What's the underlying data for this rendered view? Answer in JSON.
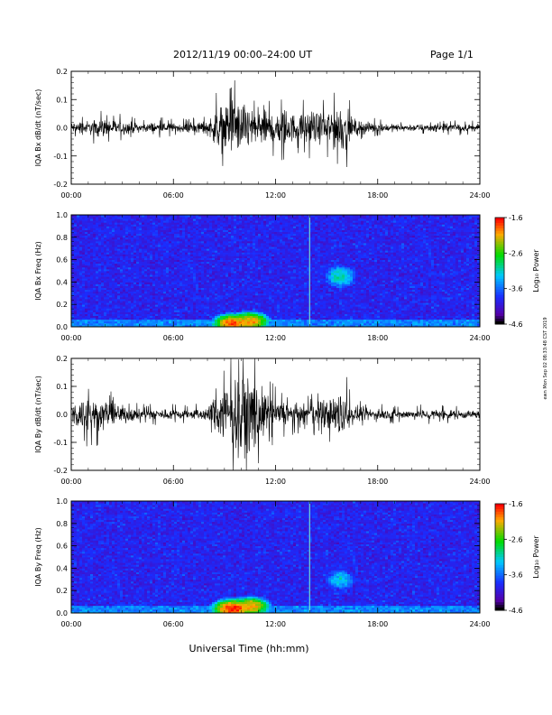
{
  "header": {
    "title": "2012/11/19  00:00–24:00 UT",
    "page": "Page 1/1"
  },
  "side_note": "ewn Mon Sep 02 08:33:48 CST 2019",
  "footer": {
    "xlabel": "Universal Time (hh:mm)"
  },
  "time_ticks": [
    "00:00",
    "06:00",
    "12:00",
    "18:00",
    "24:00"
  ],
  "colorbar": {
    "label": "Log₁₀ Power",
    "ticks": [
      "-1.6",
      "-2.6",
      "-3.6",
      "-4.6"
    ],
    "colors": [
      "#ff0000",
      "#ffaa00",
      "#00dd00",
      "#00ccff",
      "#1a2dff",
      "#5500aa",
      "#000000"
    ]
  },
  "chart_data": [
    {
      "type": "line",
      "ylabel": "IQA Bx dB/dt (nT/sec)",
      "ylim": [
        -0.2,
        0.2
      ],
      "yticks": [
        "0.2",
        "0.1",
        "0.0",
        "-0.1",
        "-0.2"
      ],
      "xlim_hours": [
        0,
        24
      ],
      "envelope": {
        "x_hours": [
          0,
          1,
          2,
          3,
          4,
          5,
          6,
          7,
          8,
          8.5,
          9,
          9.5,
          10,
          10.5,
          11,
          11.5,
          12,
          12.5,
          13,
          13.5,
          14,
          14.5,
          15,
          15.5,
          16,
          16.5,
          17,
          18,
          19,
          20,
          21,
          22,
          23,
          24
        ],
        "amplitude": [
          0.03,
          0.04,
          0.05,
          0.04,
          0.025,
          0.03,
          0.025,
          0.025,
          0.04,
          0.1,
          0.14,
          0.15,
          0.14,
          0.12,
          0.13,
          0.1,
          0.1,
          0.11,
          0.08,
          0.07,
          0.1,
          0.08,
          0.1,
          0.13,
          0.14,
          0.05,
          0.04,
          0.025,
          0.02,
          0.02,
          0.02,
          0.025,
          0.02,
          0.02
        ]
      }
    },
    {
      "type": "heatmap",
      "ylabel": "IQA Bx Freq (Hz)",
      "ylim": [
        0,
        1
      ],
      "yticks": [
        "1.0",
        "0.8",
        "0.6",
        "0.4",
        "0.2",
        "0.0"
      ],
      "xlim_hours": [
        0,
        24
      ],
      "zlim": [
        -4.6,
        -1.6
      ],
      "hot_regions": [
        {
          "t": 9.5,
          "f": 0.03,
          "power": -1.8
        },
        {
          "t": 10.5,
          "f": 0.05,
          "power": -2.0
        },
        {
          "t": 15.8,
          "f": 0.45,
          "power": -3.0
        }
      ]
    },
    {
      "type": "line",
      "ylabel": "IQA By dB/dt (nT/sec)",
      "ylim": [
        -0.2,
        0.2
      ],
      "yticks": [
        "0.2",
        "0.1",
        "0.0",
        "-0.1",
        "-0.2"
      ],
      "xlim_hours": [
        0,
        24
      ],
      "envelope": {
        "x_hours": [
          0,
          1,
          2,
          3,
          4,
          5,
          6,
          7,
          8,
          8.5,
          9,
          9.5,
          10,
          10.5,
          11,
          11.5,
          12,
          12.5,
          13,
          13.5,
          14,
          14.5,
          15,
          15.5,
          16,
          16.5,
          17,
          18,
          19,
          20,
          21,
          22,
          23,
          24
        ],
        "amplitude": [
          0.06,
          0.1,
          0.08,
          0.05,
          0.03,
          0.03,
          0.03,
          0.025,
          0.04,
          0.1,
          0.17,
          0.2,
          0.2,
          0.2,
          0.18,
          0.1,
          0.08,
          0.07,
          0.06,
          0.05,
          0.06,
          0.07,
          0.09,
          0.11,
          0.15,
          0.05,
          0.04,
          0.03,
          0.025,
          0.025,
          0.03,
          0.025,
          0.025,
          0.02
        ]
      }
    },
    {
      "type": "heatmap",
      "ylabel": "IQA By Freq (Hz)",
      "ylim": [
        0,
        1
      ],
      "yticks": [
        "1.0",
        "0.8",
        "0.6",
        "0.4",
        "0.2",
        "0.0"
      ],
      "xlim_hours": [
        0,
        24
      ],
      "zlim": [
        -4.6,
        -1.6
      ],
      "hot_regions": [
        {
          "t": 9.5,
          "f": 0.04,
          "power": -1.7
        },
        {
          "t": 10.5,
          "f": 0.06,
          "power": -2.0
        },
        {
          "t": 15.8,
          "f": 0.3,
          "power": -3.2
        }
      ]
    }
  ]
}
